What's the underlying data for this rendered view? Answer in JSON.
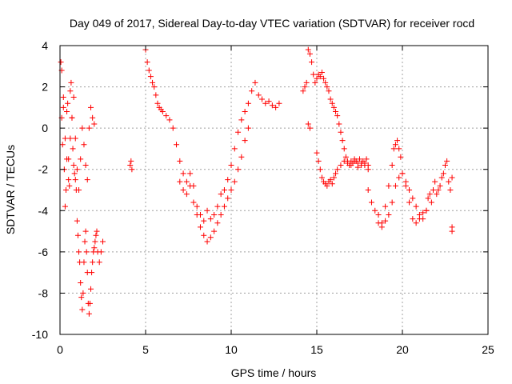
{
  "chart_data": {
    "type": "scatter",
    "title": "Day 049 of 2017, Sidereal Day-to-day VTEC variation (SDTVAR) for receiver rocd",
    "xlabel": "GPS time / hours",
    "ylabel": "SDTVAR / TECUs",
    "xlim": [
      0,
      25
    ],
    "ylim": [
      -10,
      4
    ],
    "xticks": [
      0,
      5,
      10,
      15,
      20,
      25
    ],
    "yticks": [
      -10,
      -8,
      -6,
      -4,
      -2,
      0,
      2,
      4
    ],
    "xtick_labels": [
      "0",
      "5",
      "10",
      "15",
      "20",
      "25"
    ],
    "ytick_labels": [
      "-10",
      "-8",
      "-6",
      "-4",
      "-2",
      "0",
      "2",
      "4"
    ],
    "grid": true,
    "marker": "plus",
    "color": "#ff0000",
    "series": [
      {
        "name": "sdtvar",
        "x": [
          0.05,
          0.1,
          0.15,
          0.2,
          0.25,
          0.3,
          0.35,
          0.4,
          0.45,
          0.5,
          0.55,
          0.6,
          0.65,
          0.7,
          0.75,
          0.8,
          0.85,
          0.9,
          0.95,
          1.0,
          1.05,
          1.1,
          1.15,
          1.2,
          1.25,
          1.3,
          1.35,
          1.4,
          1.45,
          1.5,
          1.55,
          1.6,
          1.65,
          1.7,
          1.75,
          1.8,
          1.85,
          1.9,
          1.95,
          2.0,
          2.05,
          2.1,
          2.15,
          2.2,
          2.3,
          2.4,
          2.5,
          0.1,
          0.2,
          0.3,
          0.4,
          0.5,
          0.6,
          0.7,
          0.8,
          0.9,
          1.0,
          1.1,
          1.2,
          1.3,
          1.4,
          1.5,
          1.6,
          1.7,
          1.8,
          1.9,
          2.0,
          4.1,
          4.15,
          4.2,
          5.0,
          5.1,
          5.2,
          5.3,
          5.4,
          5.5,
          5.6,
          5.7,
          5.8,
          5.9,
          6.0,
          6.2,
          6.4,
          6.6,
          6.8,
          7.0,
          7.2,
          7.4,
          7.6,
          7.8,
          8.0,
          8.2,
          8.4,
          8.6,
          8.8,
          9.0,
          9.2,
          9.4,
          9.6,
          9.8,
          10.0,
          10.2,
          10.4,
          10.6,
          10.8,
          11.0,
          11.2,
          11.4,
          11.6,
          11.8,
          12.0,
          12.2,
          12.4,
          12.6,
          12.8,
          7.0,
          7.2,
          7.4,
          7.6,
          7.8,
          8.0,
          8.2,
          8.4,
          8.6,
          8.8,
          9.0,
          9.2,
          9.4,
          9.6,
          9.8,
          10.0,
          10.2,
          10.4,
          10.6,
          10.8,
          11.0,
          14.2,
          14.3,
          14.4,
          14.5,
          14.6,
          14.7,
          14.8,
          14.9,
          15.0,
          15.1,
          15.2,
          15.3,
          15.4,
          15.5,
          15.6,
          15.7,
          15.8,
          15.9,
          16.0,
          16.1,
          16.2,
          16.3,
          16.4,
          16.5,
          16.6,
          16.7,
          16.8,
          16.9,
          17.0,
          17.1,
          17.2,
          17.3,
          17.4,
          17.5,
          17.6,
          17.7,
          17.8,
          17.9,
          18.0,
          14.5,
          14.6,
          15.0,
          15.1,
          15.2,
          15.3,
          15.4,
          15.5,
          15.6,
          15.7,
          15.8,
          15.9,
          16.0,
          16.1,
          16.2,
          16.4,
          16.6,
          16.8,
          17.0,
          17.2,
          17.4,
          17.6,
          17.8,
          18.0,
          18.0,
          18.2,
          18.4,
          18.6,
          18.8,
          19.0,
          19.2,
          19.4,
          19.6,
          19.8,
          20.0,
          20.2,
          20.4,
          20.6,
          20.8,
          21.0,
          21.2,
          21.4,
          18.6,
          18.8,
          19.0,
          19.2,
          19.4,
          19.5,
          19.6,
          19.7,
          19.8,
          19.9,
          20.0,
          20.2,
          20.4,
          20.6,
          20.8,
          21.0,
          21.2,
          21.4,
          21.5,
          21.6,
          21.7,
          21.8,
          21.9,
          22.0,
          22.1,
          22.2,
          22.3,
          22.4,
          22.5,
          22.6,
          22.7,
          22.8,
          22.9,
          22.9,
          22.9
        ],
        "y": [
          3.2,
          0.5,
          -0.8,
          1.5,
          -2.0,
          -3.8,
          -3.0,
          0.8,
          1.2,
          -1.5,
          -2.8,
          1.8,
          2.2,
          0.5,
          -1.0,
          -1.8,
          -2.2,
          -2.5,
          -3.0,
          -4.5,
          -5.2,
          -6.0,
          -6.5,
          -7.5,
          -8.2,
          -8.8,
          -8.0,
          -6.5,
          -5.5,
          -5.0,
          -6.0,
          -7.0,
          -8.5,
          -9.0,
          -8.5,
          -7.8,
          -7.0,
          -6.5,
          -6.0,
          -5.8,
          -5.5,
          -5.2,
          -5.0,
          -6.0,
          -6.5,
          -6.0,
          -5.5,
          2.8,
          1.0,
          -0.5,
          -1.5,
          -2.5,
          -0.5,
          0.5,
          1.5,
          -0.5,
          -2.0,
          -3.0,
          -1.5,
          0.0,
          -0.8,
          -1.8,
          -2.5,
          0.0,
          1.0,
          0.5,
          0.2,
          -1.8,
          -1.6,
          -2.0,
          3.8,
          3.2,
          2.8,
          2.5,
          2.2,
          2.0,
          1.6,
          1.2,
          1.0,
          0.9,
          0.8,
          0.6,
          0.4,
          0.0,
          -0.8,
          -1.6,
          -2.2,
          -2.6,
          -2.2,
          -2.8,
          -3.8,
          -4.2,
          -4.5,
          -4.0,
          -4.4,
          -4.2,
          -3.8,
          -3.2,
          -3.0,
          -2.5,
          -1.8,
          -1.0,
          -0.2,
          0.4,
          0.8,
          1.2,
          1.8,
          2.2,
          1.6,
          1.4,
          1.2,
          1.3,
          1.1,
          1.0,
          1.2,
          -2.6,
          -3.0,
          -3.2,
          -2.8,
          -3.6,
          -4.2,
          -4.8,
          -5.2,
          -5.5,
          -5.3,
          -5.0,
          -4.6,
          -4.2,
          -3.8,
          -3.4,
          -3.0,
          -2.6,
          -2.0,
          -1.4,
          -0.6,
          0.0,
          1.8,
          2.0,
          2.2,
          3.8,
          3.6,
          3.2,
          2.6,
          2.2,
          2.4,
          2.6,
          2.5,
          2.7,
          2.4,
          2.2,
          2.0,
          1.8,
          1.4,
          1.2,
          1.0,
          0.8,
          0.6,
          0.2,
          -0.2,
          -0.6,
          -1.0,
          -1.4,
          -1.6,
          -1.8,
          -1.6,
          -1.7,
          -1.5,
          -1.6,
          -1.7,
          -1.5,
          -1.8,
          -1.6,
          -1.7,
          -1.5,
          -1.8,
          0.2,
          0.0,
          -1.2,
          -1.6,
          -2.0,
          -2.4,
          -2.6,
          -2.7,
          -2.8,
          -2.6,
          -2.5,
          -2.7,
          -2.4,
          -2.2,
          -2.0,
          -1.8,
          -1.6,
          -1.7,
          -1.8,
          -1.6,
          -1.9,
          -1.7,
          -1.8,
          -2.0,
          -3.0,
          -3.6,
          -4.0,
          -4.6,
          -4.8,
          -4.5,
          -4.2,
          -3.6,
          -2.8,
          -2.4,
          -2.2,
          -2.6,
          -3.0,
          -3.4,
          -3.8,
          -4.2,
          -4.4,
          -4.0,
          -4.2,
          -4.6,
          -3.8,
          -2.8,
          -1.8,
          -1.0,
          -0.8,
          -0.6,
          -1.0,
          -1.4,
          -2.2,
          -2.8,
          -3.6,
          -4.4,
          -4.6,
          -4.4,
          -4.1,
          -4.0,
          -3.4,
          -3.2,
          -3.6,
          -3.0,
          -2.6,
          -3.2,
          -3.0,
          -2.8,
          -2.4,
          -2.2,
          -1.8,
          -1.6,
          -2.6,
          -3.0,
          -2.4,
          -4.8,
          -5.0
        ]
      }
    ]
  }
}
